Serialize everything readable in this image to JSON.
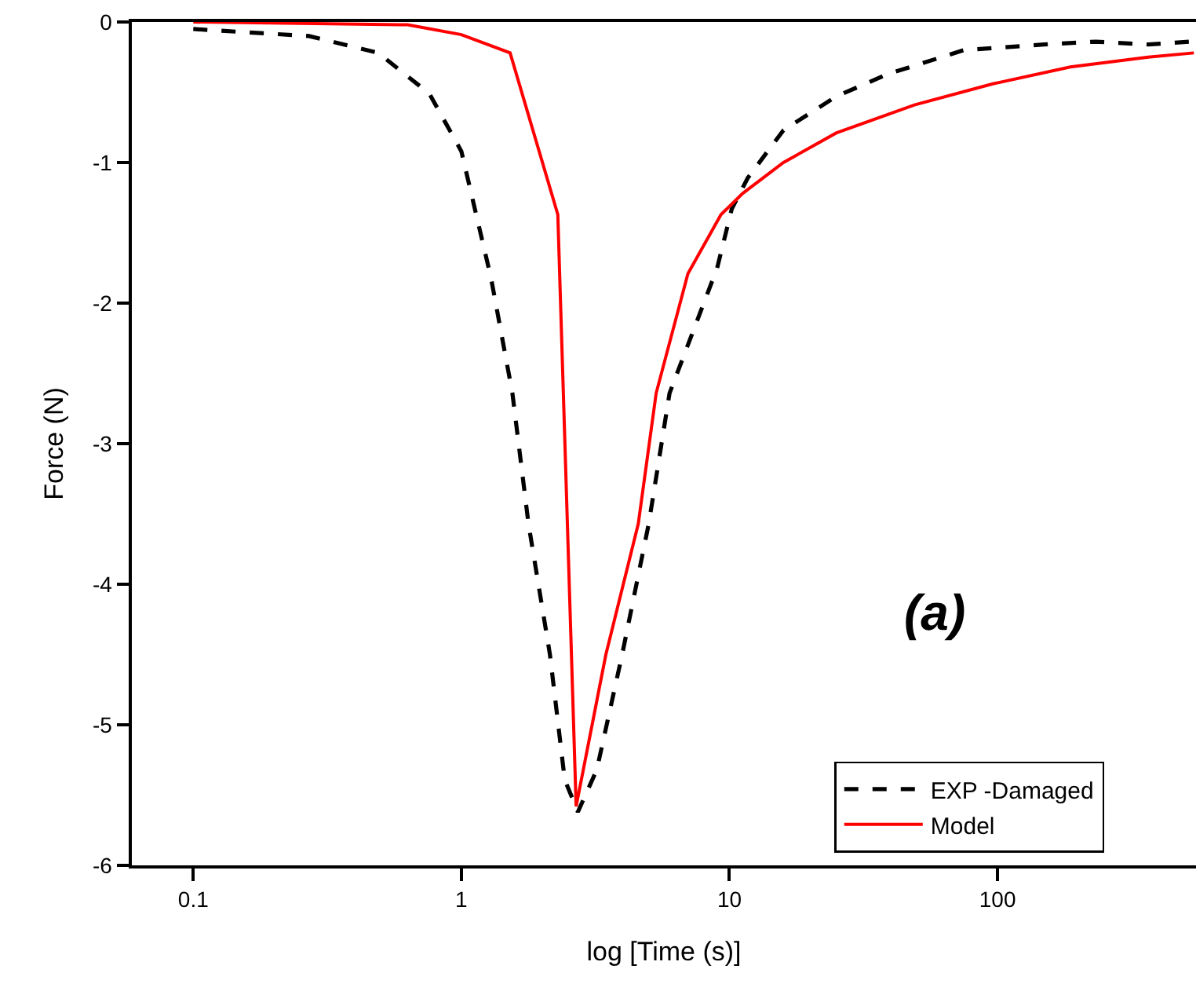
{
  "chart_data": {
    "type": "line",
    "xlabel": "log [Time (s)]",
    "ylabel": "Force (N)",
    "log": "x",
    "xlim": [
      0.059,
      550
    ],
    "xticks": [
      0.1,
      1,
      10,
      100
    ],
    "ylim": [
      -6,
      0
    ],
    "yticks": [
      -6,
      -5,
      -4,
      -3,
      -2,
      -1,
      0
    ],
    "legend": "bottom right",
    "annotations": [
      "(a)"
    ],
    "series": [
      {
        "name": "EXP -Damaged",
        "color": "#000000",
        "line_style": "dashed",
        "x": [
          0.1,
          0.27,
          0.49,
          0.76,
          1.0,
          1.29,
          1.55,
          1.78,
          2.14,
          2.43,
          2.72,
          3.2,
          3.98,
          5.0,
          5.98,
          9.0,
          10.2,
          11.7,
          15.9,
          25,
          39,
          75,
          149,
          233,
          365,
          525
        ],
        "values": [
          -0.05,
          -0.1,
          -0.22,
          -0.51,
          -0.92,
          -1.82,
          -2.64,
          -3.57,
          -4.5,
          -5.39,
          -5.62,
          -5.32,
          -4.5,
          -3.57,
          -2.64,
          -1.75,
          -1.33,
          -1.11,
          -0.77,
          -0.53,
          -0.37,
          -0.2,
          -0.16,
          -0.14,
          -0.16,
          -0.14
        ]
      },
      {
        "name": "Model",
        "color": "#ff0000",
        "line_style": "solid",
        "x": [
          0.1,
          0.63,
          1.0,
          1.52,
          2.29,
          2.68,
          3.46,
          4.57,
          5.33,
          7.0,
          9.3,
          11.2,
          15.9,
          25,
          49,
          96,
          187,
          365,
          540
        ],
        "values": [
          0,
          -0.02,
          -0.09,
          -0.22,
          -1.37,
          -5.58,
          -4.5,
          -3.57,
          -2.64,
          -1.79,
          -1.37,
          -1.22,
          -1.0,
          -0.79,
          -0.59,
          -0.44,
          -0.32,
          -0.25,
          -0.22
        ]
      }
    ]
  }
}
